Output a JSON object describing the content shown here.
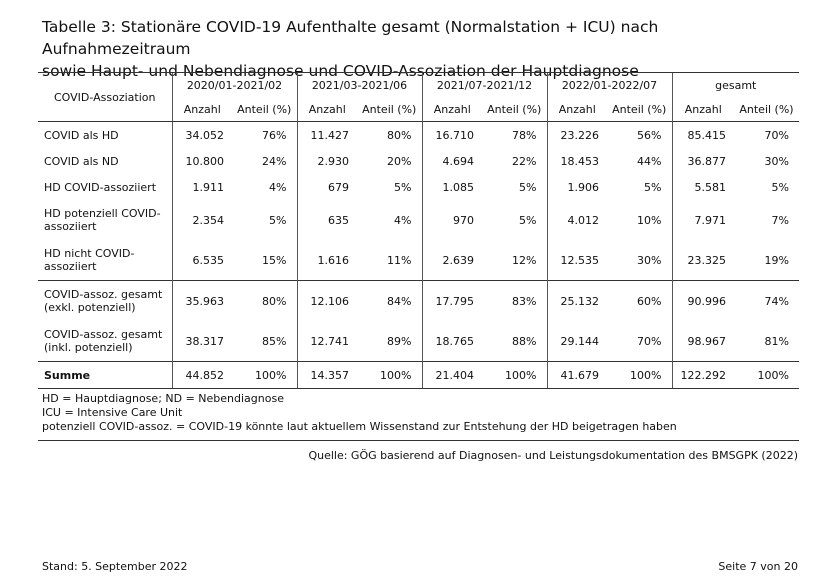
{
  "title_line1": "Tabelle 3: Stationäre COVID-19 Aufenthalte gesamt (Normalstation + ICU) nach Aufnahmezeitraum",
  "title_line2": "sowie Haupt- und Nebendiagnose und COVID-Assoziation der Hauptdiagnose",
  "table": {
    "row_header": "COVID-Assoziation",
    "periods": [
      "2020/01-2021/02",
      "2021/03-2021/06",
      "2021/07-2021/12",
      "2022/01-2022/07",
      "gesamt"
    ],
    "subheaders": {
      "count": "Anzahl",
      "share": "Anteil (%)"
    },
    "rows": [
      {
        "label": "COVID als HD",
        "values": [
          [
            "34.052",
            "76%"
          ],
          [
            "11.427",
            "80%"
          ],
          [
            "16.710",
            "78%"
          ],
          [
            "23.226",
            "56%"
          ],
          [
            "85.415",
            "70%"
          ]
        ]
      },
      {
        "label": "COVID als ND",
        "values": [
          [
            "10.800",
            "24%"
          ],
          [
            "2.930",
            "20%"
          ],
          [
            "4.694",
            "22%"
          ],
          [
            "18.453",
            "44%"
          ],
          [
            "36.877",
            "30%"
          ]
        ]
      },
      {
        "label": "HD COVID-assoziiert",
        "values": [
          [
            "1.911",
            "4%"
          ],
          [
            "679",
            "5%"
          ],
          [
            "1.085",
            "5%"
          ],
          [
            "1.906",
            "5%"
          ],
          [
            "5.581",
            "5%"
          ]
        ]
      },
      {
        "label_l1": "HD potenziell COVID-",
        "label_l2": "assoziiert",
        "values": [
          [
            "2.354",
            "5%"
          ],
          [
            "635",
            "4%"
          ],
          [
            "970",
            "5%"
          ],
          [
            "4.012",
            "10%"
          ],
          [
            "7.971",
            "7%"
          ]
        ]
      },
      {
        "label_l1": "HD nicht COVID-",
        "label_l2": "assoziiert",
        "values": [
          [
            "6.535",
            "15%"
          ],
          [
            "1.616",
            "11%"
          ],
          [
            "2.639",
            "12%"
          ],
          [
            "12.535",
            "30%"
          ],
          [
            "23.325",
            "19%"
          ]
        ]
      },
      {
        "label_l1": "COVID-assoz. gesamt",
        "label_l2": "(exkl. potenziell)",
        "values": [
          [
            "35.963",
            "80%"
          ],
          [
            "12.106",
            "84%"
          ],
          [
            "17.795",
            "83%"
          ],
          [
            "25.132",
            "60%"
          ],
          [
            "90.996",
            "74%"
          ]
        ]
      },
      {
        "label_l1": "COVID-assoz. gesamt",
        "label_l2": "(inkl. potenziell)",
        "values": [
          [
            "38.317",
            "85%"
          ],
          [
            "12.741",
            "89%"
          ],
          [
            "18.765",
            "88%"
          ],
          [
            "29.144",
            "70%"
          ],
          [
            "98.967",
            "81%"
          ]
        ]
      },
      {
        "label": "Summe",
        "values": [
          [
            "44.852",
            "100%"
          ],
          [
            "14.357",
            "100%"
          ],
          [
            "21.404",
            "100%"
          ],
          [
            "41.679",
            "100%"
          ],
          [
            "122.292",
            "100%"
          ]
        ]
      }
    ]
  },
  "notes": [
    "HD = Hauptdiagnose; ND = Nebendiagnose",
    "ICU = Intensive Care Unit",
    "potenziell COVID-assoz. = COVID-19 könnte laut aktuellem Wissenstand zur Entstehung der HD beigetragen haben"
  ],
  "source": "Quelle: GÖG basierend auf Diagnosen- und Leistungsdokumentation des BMSGPK (2022)",
  "footer": {
    "stand": "Stand: 5. September 2022",
    "page": "Seite 7 von 20"
  }
}
